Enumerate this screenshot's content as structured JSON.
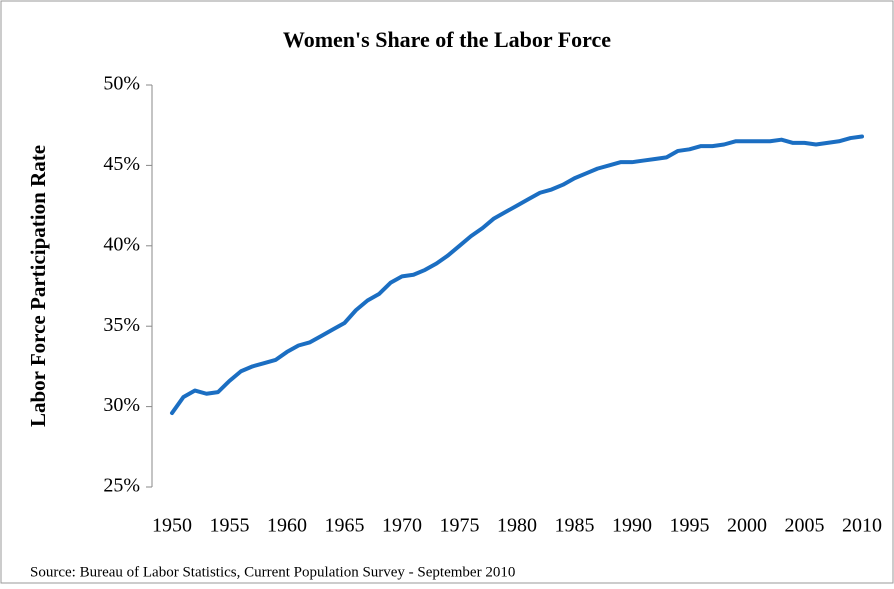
{
  "chart_data": {
    "type": "line",
    "title": "Women's Share of the Labor Force",
    "y_label": "Labor Force Participation Rate",
    "source": "Source: Bureau of Labor Statistics, Current Population Survey - September 2010",
    "x": [
      1950,
      1951,
      1952,
      1953,
      1954,
      1955,
      1956,
      1957,
      1958,
      1959,
      1960,
      1961,
      1962,
      1963,
      1964,
      1965,
      1966,
      1967,
      1968,
      1969,
      1970,
      1971,
      1972,
      1973,
      1974,
      1975,
      1976,
      1977,
      1978,
      1979,
      1980,
      1981,
      1982,
      1983,
      1984,
      1985,
      1986,
      1987,
      1988,
      1989,
      1990,
      1991,
      1992,
      1993,
      1994,
      1995,
      1996,
      1997,
      1998,
      1999,
      2000,
      2001,
      2002,
      2003,
      2004,
      2005,
      2006,
      2007,
      2008,
      2009,
      2010
    ],
    "series": [
      {
        "color": "#1b6ec2",
        "values": [
          29.6,
          30.6,
          31.0,
          30.8,
          30.9,
          31.6,
          32.2,
          32.5,
          32.7,
          32.9,
          33.4,
          33.8,
          34.0,
          34.4,
          34.8,
          35.2,
          36.0,
          36.6,
          37.0,
          37.7,
          38.1,
          38.2,
          38.5,
          38.9,
          39.4,
          40.0,
          40.6,
          41.1,
          41.7,
          42.1,
          42.5,
          42.9,
          43.3,
          43.5,
          43.8,
          44.2,
          44.5,
          44.8,
          45.0,
          45.2,
          45.2,
          45.3,
          45.4,
          45.5,
          45.9,
          46.0,
          46.2,
          46.2,
          46.3,
          46.5,
          46.5,
          46.5,
          46.5,
          46.6,
          46.4,
          46.4,
          46.3,
          46.4,
          46.5,
          46.7,
          46.8
        ]
      }
    ],
    "xlim": [
      1950,
      2010
    ],
    "xticks": [
      1950,
      1955,
      1960,
      1965,
      1970,
      1975,
      1980,
      1985,
      1990,
      1995,
      2000,
      2005,
      2010
    ],
    "ylim": [
      25,
      50
    ],
    "yticks": [
      {
        "value": 25,
        "label": "25%"
      },
      {
        "value": 30,
        "label": "30%"
      },
      {
        "value": 35,
        "label": "35%"
      },
      {
        "value": 40,
        "label": "40%"
      },
      {
        "value": 45,
        "label": "45%"
      },
      {
        "value": 50,
        "label": "50%"
      }
    ],
    "grid": false
  }
}
